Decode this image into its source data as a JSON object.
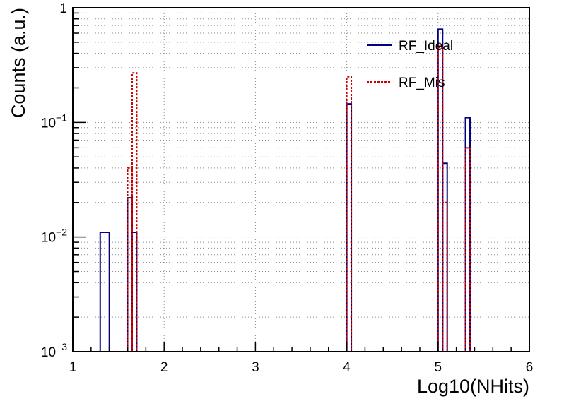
{
  "chart_data": {
    "type": "step-histogram",
    "title": "",
    "xlabel": "Log10(NHits)",
    "ylabel": "Counts (a.u.)",
    "xlim": [
      1,
      6
    ],
    "ylim": [
      0.001,
      1
    ],
    "y_scale": "log",
    "grid": true,
    "legend_position": "top-right",
    "x_ticks": [
      {
        "value": 1,
        "label": "1"
      },
      {
        "value": 2,
        "label": "2"
      },
      {
        "value": 3,
        "label": "3"
      },
      {
        "value": 4,
        "label": "4"
      },
      {
        "value": 5,
        "label": "5"
      },
      {
        "value": 6,
        "label": "6"
      }
    ],
    "y_ticks": [
      {
        "value": 0.001,
        "base": "10",
        "exp": "−3"
      },
      {
        "value": 0.01,
        "base": "10",
        "exp": "−2"
      },
      {
        "value": 0.1,
        "base": "10",
        "exp": "−1"
      },
      {
        "value": 1,
        "base": "1",
        "exp": ""
      }
    ],
    "series": [
      {
        "name": "RF_Ideal",
        "color": "#000080",
        "dash": "solid",
        "bins": [
          {
            "x0": 1.3,
            "x1": 1.4,
            "y": 0.011
          },
          {
            "x0": 1.6,
            "x1": 1.65,
            "y": 0.022
          },
          {
            "x0": 1.65,
            "x1": 1.7,
            "y": 0.011
          },
          {
            "x0": 4.0,
            "x1": 4.05,
            "y": 0.145
          },
          {
            "x0": 5.0,
            "x1": 5.05,
            "y": 0.65
          },
          {
            "x0": 5.05,
            "x1": 5.1,
            "y": 0.044
          },
          {
            "x0": 5.3,
            "x1": 5.35,
            "y": 0.11
          }
        ]
      },
      {
        "name": "RF_Mis",
        "color": "#cc0000",
        "dash": "dotted",
        "bins": [
          {
            "x0": 1.6,
            "x1": 1.65,
            "y": 0.04
          },
          {
            "x0": 1.65,
            "x1": 1.7,
            "y": 0.27
          },
          {
            "x0": 4.0,
            "x1": 4.05,
            "y": 0.25
          },
          {
            "x0": 5.0,
            "x1": 5.05,
            "y": 0.45
          },
          {
            "x0": 5.05,
            "x1": 5.1,
            "y": 0.02
          },
          {
            "x0": 5.3,
            "x1": 5.35,
            "y": 0.06
          }
        ]
      }
    ]
  }
}
